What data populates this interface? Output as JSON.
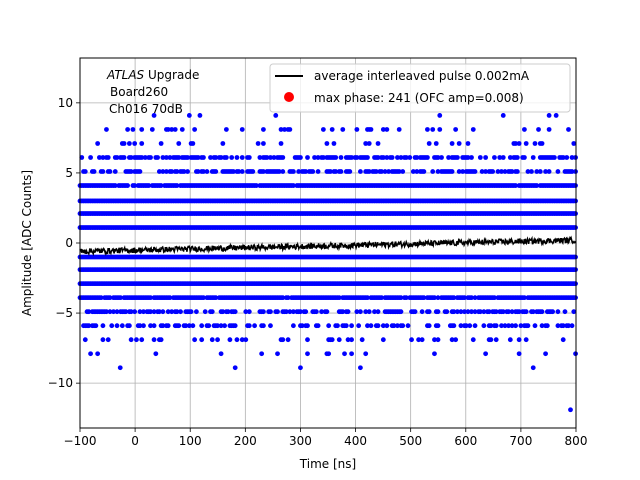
{
  "chart_data": {
    "type": "scatter",
    "xlabel": "Time [ns]",
    "ylabel": "Amplitude [ADC Counts]",
    "xlim": [
      -100,
      800
    ],
    "ylim": [
      -13.2,
      13.2
    ],
    "xticks": [
      -100,
      0,
      100,
      200,
      300,
      400,
      500,
      600,
      700,
      800
    ],
    "yticks": [
      -10,
      -5,
      0,
      5,
      10
    ],
    "grid": true,
    "legend_position": "top-right",
    "annotation": {
      "experiment": "ATLAS",
      "experiment_suffix": "Upgrade",
      "board": "Board260",
      "channel": "Ch016 70dB"
    },
    "series": [
      {
        "name": "average interleaved pulse 0.002mA",
        "kind": "line",
        "color": "#000000",
        "x_range": [
          -100,
          800
        ],
        "y_start": -0.6,
        "y_end": 0.2,
        "noise_amplitude": 0.4
      },
      {
        "name": "max phase: 241 (OFC amp=0.008)",
        "kind": "scatter",
        "color": "#ff0000",
        "marker": "circle"
      },
      {
        "name": "samples",
        "kind": "scatter",
        "color": "#0000ff",
        "x_range": [
          -100,
          800
        ],
        "levels": [
          {
            "y": 6.1,
            "density": 0.55
          },
          {
            "y": 5.1,
            "density": 0.5
          },
          {
            "y": 4.1,
            "density": 0.95
          },
          {
            "y": 3.0,
            "density": 1.0
          },
          {
            "y": 2.1,
            "density": 1.0
          },
          {
            "y": 1.1,
            "density": 1.0
          },
          {
            "y": -1.0,
            "density": 1.0
          },
          {
            "y": -1.9,
            "density": 1.0
          },
          {
            "y": -2.9,
            "density": 1.0
          },
          {
            "y": -3.9,
            "density": 0.95
          },
          {
            "y": -4.9,
            "density": 0.5
          },
          {
            "y": -5.9,
            "density": 0.35
          },
          {
            "y": 8.1,
            "density": 0.15
          },
          {
            "y": 7.1,
            "density": 0.1
          },
          {
            "y": 9.1,
            "density": 0.02
          },
          {
            "y": -6.9,
            "density": 0.15
          },
          {
            "y": -7.9,
            "density": 0.05
          },
          {
            "y": -8.9,
            "density": 0.01
          }
        ],
        "outliers": [
          {
            "x": 300,
            "y": -8.9
          },
          {
            "x": 790,
            "y": -11.9
          },
          {
            "x": -27,
            "y": -8.9
          }
        ]
      }
    ]
  }
}
